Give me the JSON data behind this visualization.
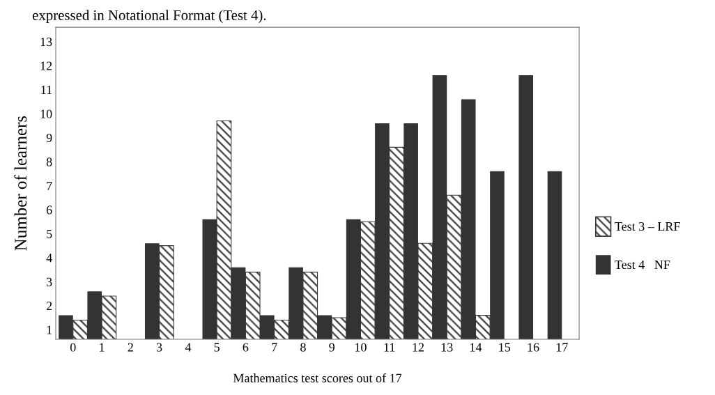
{
  "chart_data": {
    "type": "bar",
    "title": "expressed in Notational Format (Test 4).",
    "xlabel": "Mathematics test scores out of 17",
    "ylabel": "Number of learners",
    "categories": [
      "0",
      "1",
      "2",
      "3",
      "4",
      "5",
      "6",
      "7",
      "8",
      "9",
      "10",
      "11",
      "12",
      "13",
      "14",
      "15",
      "16",
      "17"
    ],
    "series": [
      {
        "name": "Test 3 – LRF",
        "color": "#3a3a3a",
        "values": [
          1.4,
          2.4,
          null,
          4.5,
          null,
          9.7,
          3.4,
          1.4,
          3.4,
          1.5,
          5.5,
          8.6,
          4.6,
          6.6,
          1.6,
          null,
          null,
          null
        ]
      },
      {
        "name": "Test 4   NF",
        "color": "#333333",
        "values": [
          1.6,
          2.6,
          null,
          4.6,
          null,
          5.6,
          3.6,
          1.6,
          3.6,
          1.6,
          5.6,
          9.6,
          9.6,
          11.6,
          10.6,
          7.6,
          11.6,
          7.6
        ]
      }
    ],
    "ylim": [
      0.6,
      13.6
    ],
    "yticks": [
      1,
      2,
      3,
      4,
      5,
      6,
      7,
      8,
      9,
      10,
      11,
      12,
      13
    ],
    "grid": false,
    "legend": "right"
  }
}
